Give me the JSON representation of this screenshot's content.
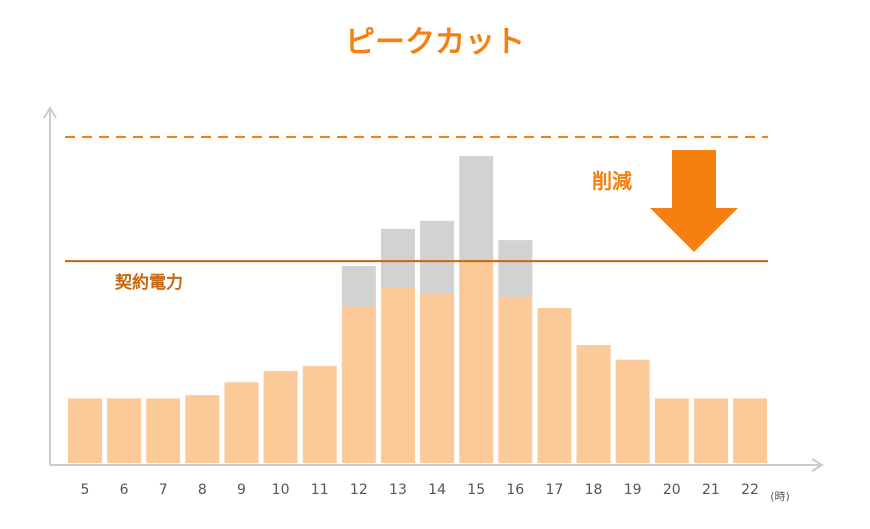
{
  "chart_data": {
    "type": "bar",
    "title": "ピークカット",
    "categories": [
      "5",
      "6",
      "7",
      "8",
      "9",
      "10",
      "11",
      "12",
      "13",
      "14",
      "15",
      "16",
      "17",
      "18",
      "19",
      "20",
      "21",
      "22"
    ],
    "x_unit": "(時)",
    "series": [
      {
        "values": [
          4.0,
          4.0,
          4.0,
          4.2,
          5.0,
          5.7,
          6.0,
          9.7,
          10.9,
          10.5,
          12.5,
          10.3,
          9.6,
          7.3,
          6.4,
          4.0,
          4.0,
          4.0
        ],
        "color": "#fcc999"
      },
      {
        "values": [
          0,
          0,
          0,
          0,
          0,
          0,
          0,
          2.5,
          3.6,
          4.5,
          6.5,
          3.5,
          0,
          0,
          0,
          0,
          0,
          0
        ],
        "color": "#d2d2d2"
      }
    ],
    "stacked": true,
    "ylim": [
      0,
      20
    ],
    "lines": [
      {
        "label": "契約電力",
        "value": 12.5,
        "style": "solid",
        "color": "#c7660e"
      },
      {
        "value": 20.0,
        "style": "dashed",
        "color": "#f57f0f"
      }
    ],
    "annotation": {
      "label": "削減",
      "icon": "down-arrow-icon",
      "color": "#f57f0f"
    },
    "axis_color": "#cccccc",
    "grid": false
  }
}
